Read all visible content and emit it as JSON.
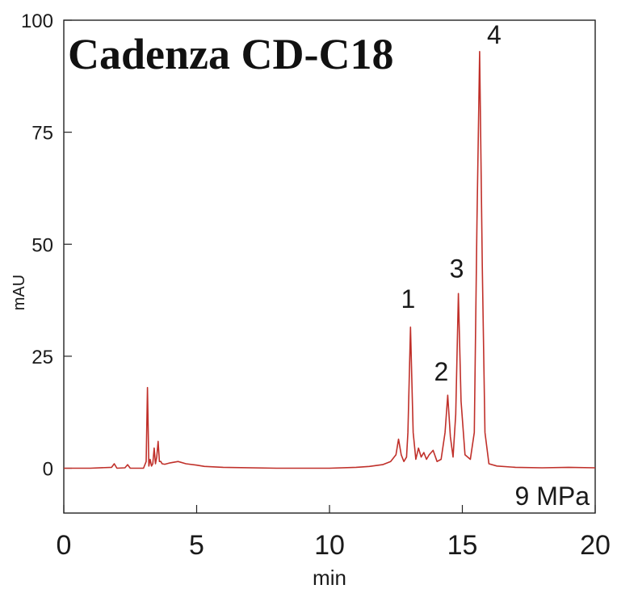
{
  "chart_data": {
    "type": "line",
    "title": "Cadenza CD-C18",
    "annotation": "9 MPa",
    "xlabel": "min",
    "ylabel": "mAU",
    "xlim": [
      0,
      20
    ],
    "ylim": [
      -10,
      100
    ],
    "x_ticks": [
      "0",
      "5",
      "10",
      "15",
      "20"
    ],
    "y_ticks": [
      "0",
      "25",
      "50",
      "75",
      "100"
    ],
    "grid": false,
    "line_color": "#c0302a",
    "peaks": [
      {
        "label": "1",
        "x": 13.05,
        "y": 31.5
      },
      {
        "label": "2",
        "x": 14.45,
        "y": 16.3
      },
      {
        "label": "3",
        "x": 14.85,
        "y": 39.0
      },
      {
        "label": "4",
        "x": 15.65,
        "y": 93.0
      }
    ],
    "series": [
      {
        "x": [
          0,
          1.0,
          1.8,
          1.9,
          2.0,
          2.3,
          2.4,
          2.5,
          3.0,
          3.1,
          3.15,
          3.2,
          3.25,
          3.3,
          3.35,
          3.4,
          3.45,
          3.5,
          3.55,
          3.6,
          3.65,
          3.7,
          3.8,
          4.0,
          4.3,
          4.6,
          5.0,
          5.3,
          6.0,
          8.0,
          10.0,
          11.0,
          11.5,
          12.0,
          12.3,
          12.5,
          12.6,
          12.7,
          12.8,
          12.9,
          12.95,
          13.05,
          13.15,
          13.25,
          13.35,
          13.45,
          13.55,
          13.65,
          13.75,
          13.9,
          14.05,
          14.2,
          14.35,
          14.45,
          14.55,
          14.65,
          14.75,
          14.85,
          14.95,
          15.1,
          15.3,
          15.45,
          15.55,
          15.65,
          15.75,
          15.85,
          16.0,
          16.3,
          17.0,
          18.0,
          19.0,
          20.0
        ],
        "y": [
          0,
          0,
          0.2,
          1.0,
          0,
          0.1,
          0.8,
          0,
          0,
          1.5,
          18.0,
          0.5,
          2.0,
          0.5,
          1.0,
          4.5,
          1.0,
          2.5,
          6.0,
          1.5,
          1.5,
          1.0,
          0.9,
          1.2,
          1.5,
          1.0,
          0.7,
          0.4,
          0.2,
          0,
          0,
          0.2,
          0.4,
          0.8,
          1.5,
          3.0,
          6.5,
          3.0,
          1.5,
          2.5,
          8.0,
          31.5,
          8.0,
          2.0,
          4.5,
          2.5,
          3.5,
          2.0,
          3.0,
          4.0,
          1.5,
          2.0,
          8.0,
          16.3,
          7.0,
          2.5,
          12.0,
          39.0,
          15.0,
          3.0,
          2.0,
          8.0,
          55.0,
          93.0,
          45.0,
          8.0,
          1.0,
          0.5,
          0.2,
          0.1,
          0.2,
          0.1
        ]
      }
    ]
  }
}
